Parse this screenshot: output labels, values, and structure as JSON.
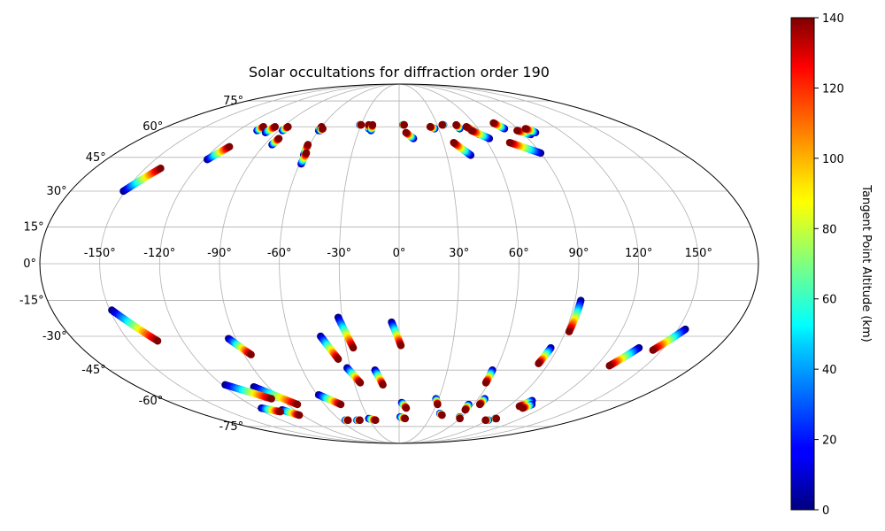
{
  "chart_data": {
    "type": "scatter",
    "projection": "mollweide",
    "title": "Solar occultations for diffraction order 190",
    "grid": true,
    "x_ticks": [
      "-150°",
      "-120°",
      "-90°",
      "-60°",
      "-30°",
      "0°",
      "30°",
      "60°",
      "90°",
      "120°",
      "150°"
    ],
    "x_tick_values": [
      -150,
      -120,
      -90,
      -60,
      -30,
      0,
      30,
      60,
      90,
      120,
      150
    ],
    "y_ticks": [
      "-75°",
      "-60°",
      "-45°",
      "-30°",
      "-15°",
      "0°",
      "15°",
      "30°",
      "45°",
      "60°",
      "75°"
    ],
    "y_tick_values": [
      -75,
      -60,
      -45,
      -30,
      -15,
      0,
      15,
      30,
      45,
      60,
      75
    ],
    "colorbar": {
      "label": "Tangent Point Altitude (km)",
      "colormap": "jet",
      "range": [
        0,
        140
      ],
      "ticks": [
        "0",
        "20",
        "40",
        "60",
        "80",
        "100",
        "120",
        "140"
      ],
      "tick_values": [
        0,
        20,
        40,
        60,
        80,
        100,
        120,
        140
      ]
    },
    "occultation_tracks": [
      {
        "start": [
          -151,
          30
        ],
        "end": [
          -141,
          40
        ]
      },
      {
        "start": [
          -118,
          44
        ],
        "end": [
          -112,
          50
        ]
      },
      {
        "start": [
          -106,
          58
        ],
        "end": [
          -105,
          60
        ]
      },
      {
        "start": [
          -98,
          57
        ],
        "end": [
          -96,
          60
        ]
      },
      {
        "start": [
          -87,
          58
        ],
        "end": [
          -86,
          60
        ]
      },
      {
        "start": [
          -85,
          51
        ],
        "end": [
          -84,
          54
        ]
      },
      {
        "start": [
          -60,
          46
        ],
        "end": [
          -61,
          51
        ]
      },
      {
        "start": [
          -59,
          42
        ],
        "end": [
          -59,
          47
        ]
      },
      {
        "start": [
          -60,
          58
        ],
        "end": [
          -60,
          60
        ]
      },
      {
        "start": [
          -59,
          58
        ],
        "end": [
          -58,
          59
        ]
      },
      {
        "start": [
          -31,
          61
        ],
        "end": [
          -30,
          61
        ]
      },
      {
        "start": [
          -23,
          59
        ],
        "end": [
          -24,
          61
        ]
      },
      {
        "start": [
          -21,
          58
        ],
        "end": [
          -21,
          61
        ]
      },
      {
        "start": [
          3,
          61
        ],
        "end": [
          4,
          61
        ]
      },
      {
        "start": [
          10,
          54
        ],
        "end": [
          5,
          57
        ]
      },
      {
        "start": [
          27,
          59
        ],
        "end": [
          24,
          60
        ]
      },
      {
        "start": [
          35,
          61
        ],
        "end": [
          34,
          61
        ]
      },
      {
        "start": [
          46,
          59
        ],
        "end": [
          45,
          61
        ]
      },
      {
        "start": [
          58,
          56
        ],
        "end": [
          52,
          60
        ]
      },
      {
        "start": [
          63,
          54
        ],
        "end": [
          54,
          58
        ]
      },
      {
        "start": [
          45,
          46
        ],
        "end": [
          37,
          52
        ]
      },
      {
        "start": [
          80,
          59
        ],
        "end": [
          76,
          62
        ]
      },
      {
        "start": [
          95,
          56
        ],
        "end": [
          88,
          58
        ]
      },
      {
        "start": [
          100,
          57
        ],
        "end": [
          96,
          59
        ]
      },
      {
        "start": [
          90,
          47
        ],
        "end": [
          75,
          52
        ]
      },
      {
        "start": [
          -149,
          -19
        ],
        "end": [
          -134,
          -32
        ]
      },
      {
        "start": [
          -94,
          -31
        ],
        "end": [
          -86,
          -38
        ]
      },
      {
        "start": [
          -43,
          -30
        ],
        "end": [
          -36,
          -40
        ]
      },
      {
        "start": [
          -32,
          -22
        ],
        "end": [
          -26,
          -35
        ]
      },
      {
        "start": [
          -32,
          -44
        ],
        "end": [
          -26,
          -51
        ]
      },
      {
        "start": [
          -15,
          -45
        ],
        "end": [
          -11,
          -52
        ]
      },
      {
        "start": [
          -4,
          -24
        ],
        "end": [
          1,
          -34
        ]
      },
      {
        "start": [
          -100,
          -53
        ],
        "end": [
          -82,
          -62
        ]
      },
      {
        "start": [
          -118,
          -52
        ],
        "end": [
          -97,
          -59
        ]
      },
      {
        "start": [
          -59,
          -57
        ],
        "end": [
          -47,
          -62
        ]
      },
      {
        "start": [
          -101,
          -65
        ],
        "end": [
          -93,
          -68
        ]
      },
      {
        "start": [
          -116,
          -64
        ],
        "end": [
          -105,
          -66
        ]
      },
      {
        "start": [
          -55,
          -71
        ],
        "end": [
          -52,
          -71
        ]
      },
      {
        "start": [
          -43,
          -71
        ],
        "end": [
          -40,
          -71
        ]
      },
      {
        "start": [
          -30,
          -70
        ],
        "end": [
          -24,
          -71
        ]
      },
      {
        "start": [
          2,
          -61
        ],
        "end": [
          6,
          -64
        ]
      },
      {
        "start": [
          1,
          -69
        ],
        "end": [
          6,
          -70
        ]
      },
      {
        "start": [
          28,
          -59
        ],
        "end": [
          31,
          -62
        ]
      },
      {
        "start": [
          37,
          -67
        ],
        "end": [
          40,
          -68
        ]
      },
      {
        "start": [
          56,
          -62
        ],
        "end": [
          57,
          -65
        ]
      },
      {
        "start": [
          58,
          -69
        ],
        "end": [
          60,
          -70
        ]
      },
      {
        "start": [
          58,
          -45
        ],
        "end": [
          58,
          -51
        ]
      },
      {
        "start": [
          65,
          -59
        ],
        "end": [
          65,
          -62
        ]
      },
      {
        "start": [
          93,
          -15
        ],
        "end": [
          92,
          -28
        ]
      },
      {
        "start": [
          86,
          -35
        ],
        "end": [
          84,
          -42
        ]
      },
      {
        "start": [
          103,
          -60
        ],
        "end": [
          99,
          -63
        ]
      },
      {
        "start": [
          107,
          -62
        ],
        "end": [
          104,
          -64
        ]
      },
      {
        "start": [
          136,
          -35
        ],
        "end": [
          128,
          -43
        ]
      },
      {
        "start": [
          154,
          -27
        ],
        "end": [
          145,
          -36
        ]
      },
      {
        "start": [
          91,
          -71
        ],
        "end": [
          88,
          -71
        ]
      },
      {
        "start": [
          95,
          -70
        ],
        "end": [
          96,
          -70
        ]
      }
    ]
  }
}
